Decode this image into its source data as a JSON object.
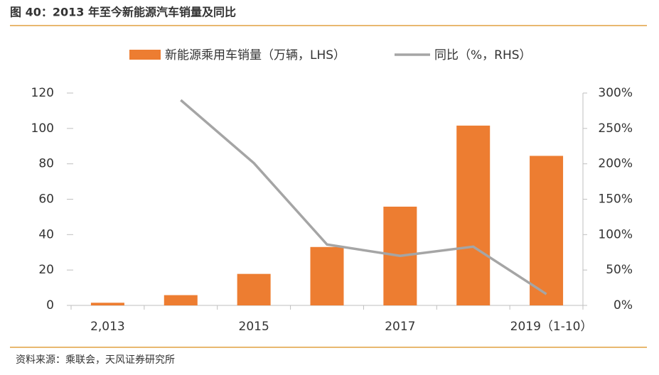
{
  "chart_data": {
    "type": "bar-line",
    "title": "图 40：2013 年至今新能源汽车销量及同比",
    "source": "资料来源：乘联会，天风证券研究所",
    "categories": [
      "2,013",
      null,
      "2015",
      null,
      "2017",
      null,
      "2019（1-10）"
    ],
    "series": [
      {
        "name": "新能源乘用车销量（万辆，LHS）",
        "type": "bar",
        "color": "#ed7d31",
        "values": [
          1.5,
          5.8,
          17.8,
          33,
          55.8,
          101.6,
          84.5
        ]
      },
      {
        "name": "同比（%，RHS）",
        "type": "line",
        "axis": "y2",
        "color": "#a5a5a5",
        "values": [
          null,
          290,
          201,
          86,
          70,
          83,
          16
        ]
      }
    ],
    "ylim": [
      0,
      120
    ],
    "yticks": [
      0,
      20,
      40,
      60,
      80,
      100,
      120
    ],
    "y2lim": [
      0,
      300
    ],
    "y2ticks": [
      {
        "value": 0,
        "label": "0%"
      },
      {
        "value": 50,
        "label": "50%"
      },
      {
        "value": 100,
        "label": "100%"
      },
      {
        "value": 150,
        "label": "150%"
      },
      {
        "value": 200,
        "label": "200%"
      },
      {
        "value": 250,
        "label": "250%"
      },
      {
        "value": 300,
        "label": "300%"
      }
    ]
  }
}
